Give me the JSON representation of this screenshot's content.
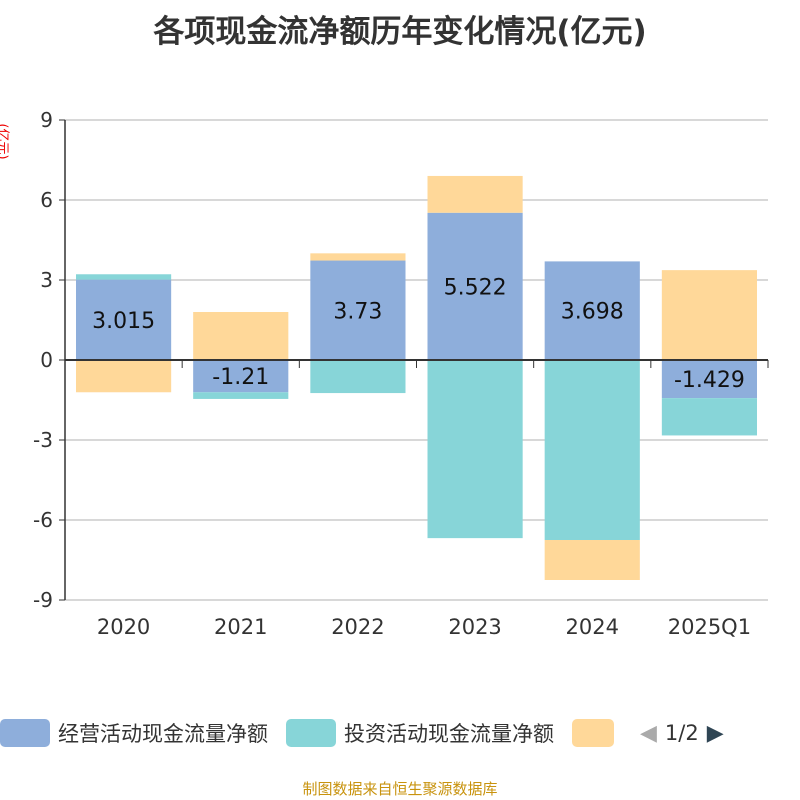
{
  "chart_data": {
    "type": "bar",
    "stacked": true,
    "title": "各项现金流净额历年变化情况(亿元)",
    "ylabel": "(亿元)",
    "ylim": [
      -9,
      9
    ],
    "yticks": [
      9,
      6,
      3,
      0,
      -3,
      -6,
      -9
    ],
    "grid": true,
    "categories": [
      "2020",
      "2021",
      "2022",
      "2023",
      "2024",
      "2025Q1"
    ],
    "series": [
      {
        "name": "经营活动现金流量净额",
        "color": "#8eaedb",
        "values": [
          3.015,
          -1.21,
          3.73,
          5.522,
          3.698,
          -1.429
        ],
        "labels": true
      },
      {
        "name": "投资活动现金流量净额",
        "color": "#87d5d8",
        "values": [
          0.2,
          -0.25,
          -1.24,
          -6.68,
          -6.75,
          -1.4
        ]
      },
      {
        "name": "",
        "color": "#ffd899",
        "values": [
          -1.21,
          1.8,
          0.27,
          1.38,
          -1.5,
          3.37
        ]
      }
    ],
    "legend": {
      "placement": "bottom",
      "page": "1/2"
    }
  },
  "source": "制图数据来自恒生聚源数据库"
}
